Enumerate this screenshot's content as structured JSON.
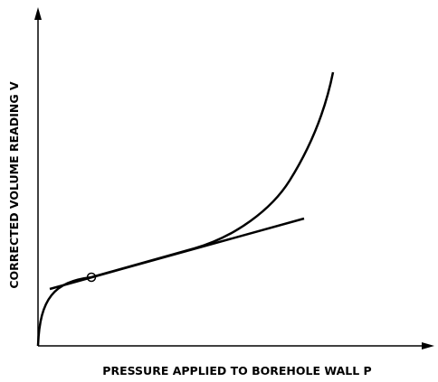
{
  "axes": {
    "x_label": "PRESSURE APPLIED TO BOREHOLE WALL P",
    "y_label": "CORRECTED VOLUME READING V"
  }
}
